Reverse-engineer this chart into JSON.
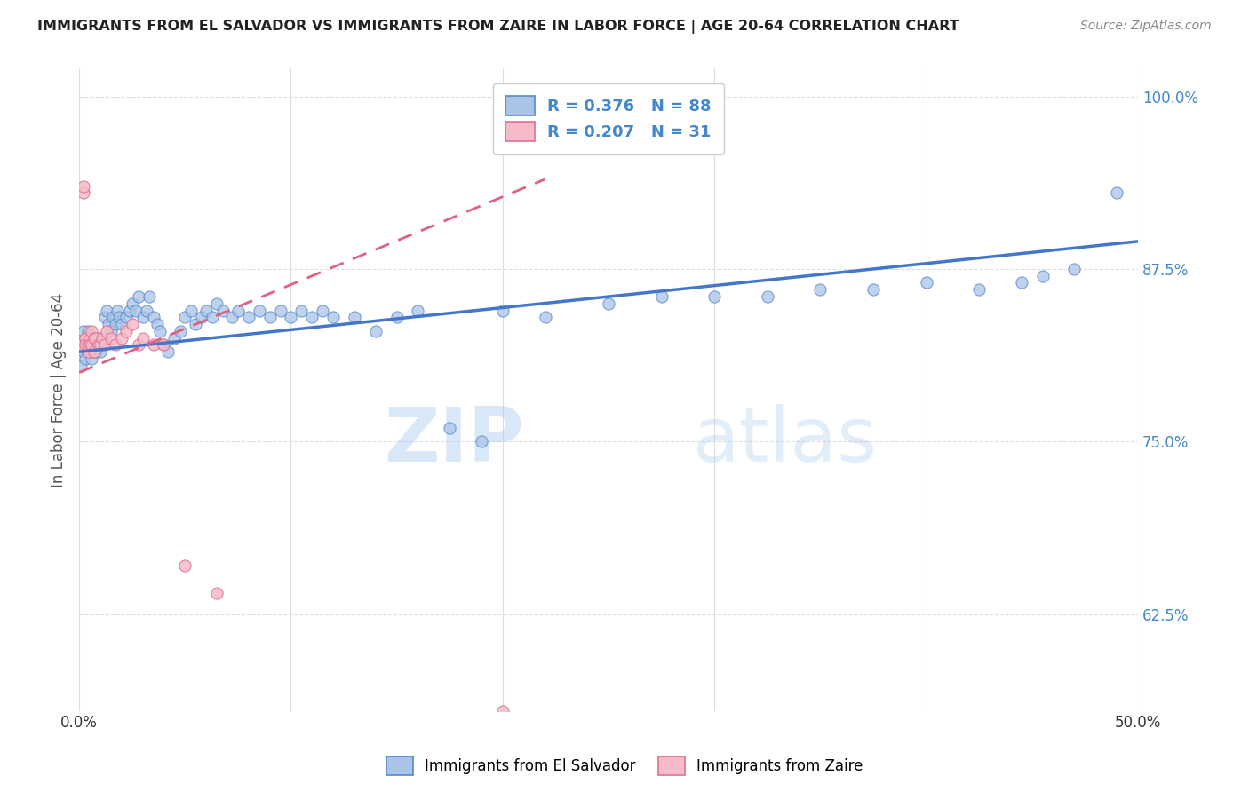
{
  "title": "IMMIGRANTS FROM EL SALVADOR VS IMMIGRANTS FROM ZAIRE IN LABOR FORCE | AGE 20-64 CORRELATION CHART",
  "source": "Source: ZipAtlas.com",
  "ylabel": "In Labor Force | Age 20-64",
  "xlim": [
    0.0,
    0.5
  ],
  "ylim": [
    0.555,
    1.02
  ],
  "xtick_pos": [
    0.0,
    0.1,
    0.2,
    0.3,
    0.4,
    0.5
  ],
  "xticklabels": [
    "0.0%",
    "",
    "",
    "",
    "",
    "50.0%"
  ],
  "ytick_pos": [
    0.625,
    0.75,
    0.875,
    1.0
  ],
  "ytick_labels": [
    "62.5%",
    "75.0%",
    "87.5%",
    "100.0%"
  ],
  "blue_fill": "#aac4e8",
  "blue_edge": "#5588cc",
  "pink_fill": "#f5bbc8",
  "pink_edge": "#e07090",
  "blue_line": "#4477cc",
  "pink_line": "#e06080",
  "watermark_color": "#cde0f5",
  "title_color": "#222222",
  "source_color": "#888888",
  "ylabel_color": "#555555",
  "ytick_color": "#4488cc",
  "xtick_color": "#333333",
  "grid_color": "#dddddd",
  "legend_text_color": "#4488cc",
  "blue_scatter_x": [
    0.001,
    0.002,
    0.002,
    0.003,
    0.003,
    0.003,
    0.004,
    0.004,
    0.004,
    0.005,
    0.005,
    0.005,
    0.006,
    0.006,
    0.007,
    0.007,
    0.007,
    0.008,
    0.008,
    0.009,
    0.009,
    0.01,
    0.01,
    0.011,
    0.012,
    0.012,
    0.013,
    0.014,
    0.015,
    0.016,
    0.017,
    0.018,
    0.019,
    0.02,
    0.022,
    0.024,
    0.025,
    0.027,
    0.028,
    0.03,
    0.032,
    0.033,
    0.035,
    0.037,
    0.038,
    0.04,
    0.042,
    0.045,
    0.048,
    0.05,
    0.053,
    0.055,
    0.058,
    0.06,
    0.063,
    0.065,
    0.068,
    0.072,
    0.075,
    0.08,
    0.085,
    0.09,
    0.095,
    0.1,
    0.105,
    0.11,
    0.115,
    0.12,
    0.13,
    0.14,
    0.15,
    0.16,
    0.175,
    0.19,
    0.2,
    0.22,
    0.25,
    0.275,
    0.3,
    0.325,
    0.35,
    0.375,
    0.4,
    0.425,
    0.445,
    0.455,
    0.47,
    0.49
  ],
  "blue_scatter_y": [
    0.805,
    0.815,
    0.83,
    0.82,
    0.81,
    0.825,
    0.815,
    0.82,
    0.83,
    0.815,
    0.82,
    0.825,
    0.81,
    0.82,
    0.815,
    0.82,
    0.825,
    0.82,
    0.815,
    0.82,
    0.825,
    0.82,
    0.815,
    0.82,
    0.825,
    0.84,
    0.845,
    0.835,
    0.83,
    0.84,
    0.835,
    0.845,
    0.84,
    0.835,
    0.84,
    0.845,
    0.85,
    0.845,
    0.855,
    0.84,
    0.845,
    0.855,
    0.84,
    0.835,
    0.83,
    0.82,
    0.815,
    0.825,
    0.83,
    0.84,
    0.845,
    0.835,
    0.84,
    0.845,
    0.84,
    0.85,
    0.845,
    0.84,
    0.845,
    0.84,
    0.845,
    0.84,
    0.845,
    0.84,
    0.845,
    0.84,
    0.845,
    0.84,
    0.84,
    0.83,
    0.84,
    0.845,
    0.76,
    0.75,
    0.845,
    0.84,
    0.85,
    0.855,
    0.855,
    0.855,
    0.86,
    0.86,
    0.865,
    0.86,
    0.865,
    0.87,
    0.875,
    0.93
  ],
  "pink_scatter_x": [
    0.001,
    0.002,
    0.002,
    0.003,
    0.003,
    0.004,
    0.004,
    0.005,
    0.005,
    0.006,
    0.006,
    0.007,
    0.007,
    0.008,
    0.009,
    0.01,
    0.011,
    0.012,
    0.013,
    0.015,
    0.017,
    0.02,
    0.022,
    0.025,
    0.028,
    0.03,
    0.035,
    0.04,
    0.05,
    0.065,
    0.2
  ],
  "pink_scatter_y": [
    0.82,
    0.93,
    0.935,
    0.825,
    0.82,
    0.82,
    0.815,
    0.825,
    0.82,
    0.83,
    0.82,
    0.825,
    0.815,
    0.825,
    0.82,
    0.82,
    0.825,
    0.82,
    0.83,
    0.825,
    0.82,
    0.825,
    0.83,
    0.835,
    0.82,
    0.825,
    0.82,
    0.82,
    0.66,
    0.64,
    0.555
  ],
  "blue_trendline_x": [
    0.0,
    0.5
  ],
  "blue_trendline_y": [
    0.815,
    0.895
  ],
  "pink_trendline_x": [
    0.0,
    0.22
  ],
  "pink_trendline_y": [
    0.8,
    0.94
  ]
}
